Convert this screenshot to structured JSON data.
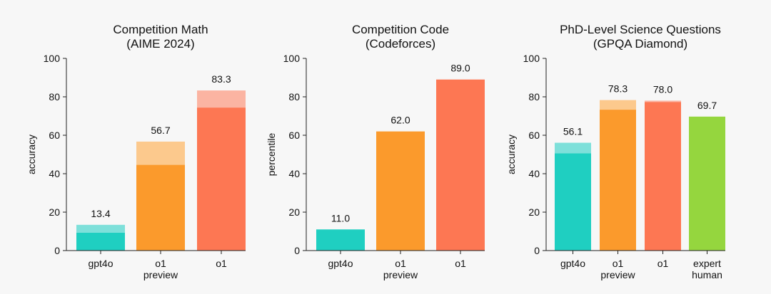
{
  "chart_data": [
    {
      "type": "bar",
      "title": [
        "Competition Math",
        "(AIME 2024)"
      ],
      "ylabel": "accuracy",
      "ylim": [
        0,
        100
      ],
      "yticks": [
        0,
        20,
        40,
        60,
        80,
        100
      ],
      "grid": false,
      "categories": [
        [
          "gpt4o"
        ],
        [
          "o1",
          "preview"
        ],
        [
          "o1"
        ]
      ],
      "values": [
        13.4,
        56.7,
        83.3
      ],
      "solid_values": [
        9.3,
        44.6,
        74.4
      ],
      "value_labels": [
        "13.4",
        "56.7",
        "83.3"
      ],
      "colors": [
        "#1fcfc1",
        "#fb9a2c",
        "#fd7753"
      ],
      "light_colors": [
        "#7ee0da",
        "#fcc98d",
        "#fbb4a2"
      ]
    },
    {
      "type": "bar",
      "title": [
        "Competition Code",
        "(Codeforces)"
      ],
      "ylabel": "percentile",
      "ylim": [
        0,
        100
      ],
      "yticks": [
        0,
        20,
        40,
        60,
        80,
        100
      ],
      "grid": false,
      "categories": [
        [
          "gpt4o"
        ],
        [
          "o1",
          "preview"
        ],
        [
          "o1"
        ]
      ],
      "values": [
        11.0,
        62.0,
        89.0
      ],
      "solid_values": [
        11.0,
        62.0,
        89.0
      ],
      "value_labels": [
        "11.0",
        "62.0",
        "89.0"
      ],
      "colors": [
        "#1fcfc1",
        "#fb9a2c",
        "#fd7753"
      ],
      "light_colors": [
        "#7ee0da",
        "#fcc98d",
        "#fbb4a2"
      ]
    },
    {
      "type": "bar",
      "title": [
        "PhD-Level Science Questions",
        "(GPQA Diamond)"
      ],
      "ylabel": "accuracy",
      "ylim": [
        0,
        100
      ],
      "yticks": [
        0,
        20,
        40,
        60,
        80,
        100
      ],
      "grid": false,
      "categories": [
        [
          "gpt4o"
        ],
        [
          "o1",
          "preview"
        ],
        [
          "o1"
        ],
        [
          "expert",
          "human"
        ]
      ],
      "values": [
        56.1,
        78.3,
        78.0,
        69.7
      ],
      "solid_values": [
        50.6,
        73.3,
        77.3,
        69.7
      ],
      "value_labels": [
        "56.1",
        "78.3",
        "78.0",
        "69.7"
      ],
      "colors": [
        "#1fcfc1",
        "#fb9a2c",
        "#fd7753",
        "#95d63e"
      ],
      "light_colors": [
        "#7ee0da",
        "#fcc98d",
        "#fbb4a2",
        "#c5ea94"
      ]
    }
  ]
}
